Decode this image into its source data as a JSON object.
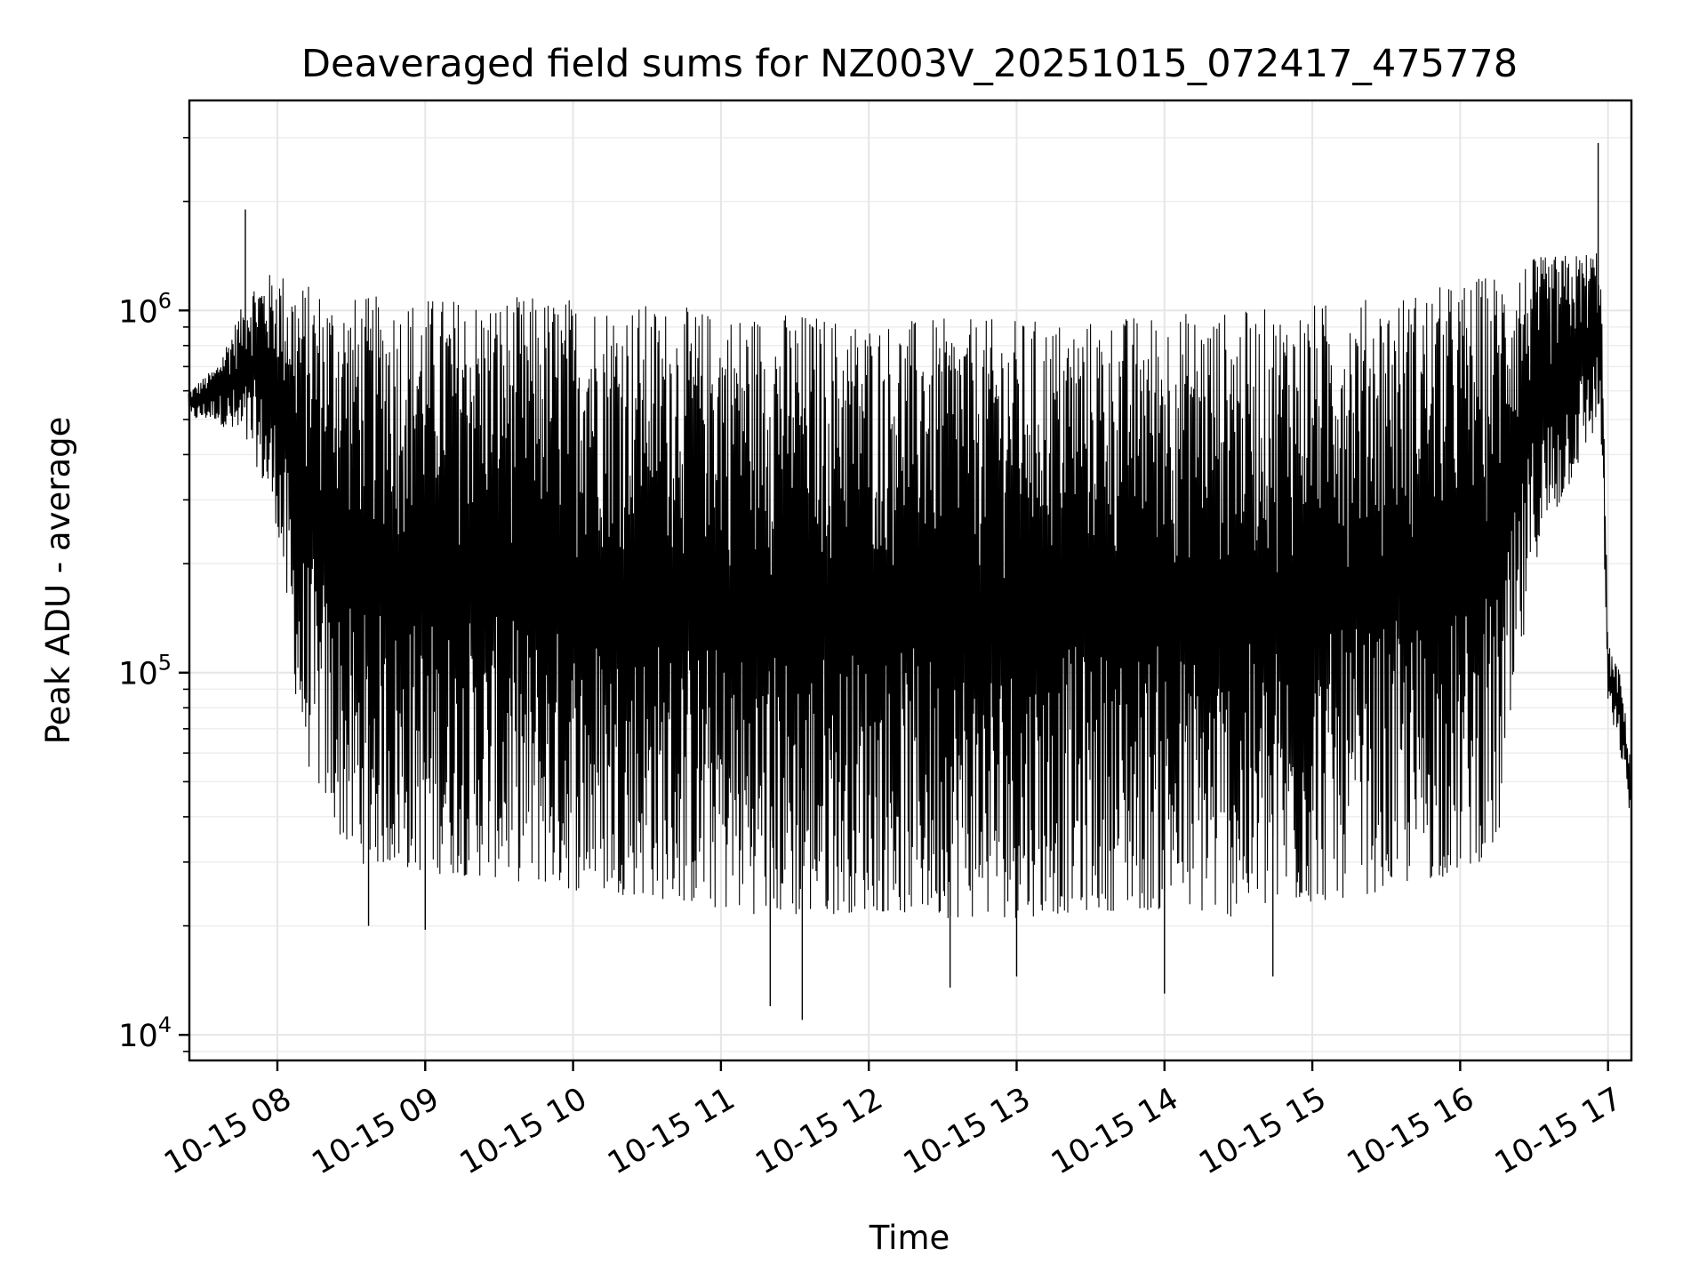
{
  "chart_data": {
    "type": "line",
    "title": "Deaveraged field sums for NZ003V_20251015_072417_475778",
    "xlabel": "Time",
    "ylabel": "Peak ADU - average",
    "yscale": "log",
    "ylim": [
      8500,
      3800000
    ],
    "xlim": [
      "2025-10-15 07:24:17",
      "2025-10-15 17:09:30"
    ],
    "grid": true,
    "legend": "none",
    "line_color": "#000000",
    "x_ticks": [
      "10-15 08",
      "10-15 09",
      "10-15 10",
      "10-15 11",
      "10-15 12",
      "10-15 13",
      "10-15 14",
      "10-15 15",
      "10-15 16",
      "10-15 17"
    ],
    "y_ticks": [
      {
        "base": "10",
        "exp": "4",
        "value": 10000
      },
      {
        "base": "10",
        "exp": "5",
        "value": 100000
      },
      {
        "base": "10",
        "exp": "6",
        "value": 1000000
      }
    ],
    "envelope": {
      "x": [
        "2025-10-15 07:24",
        "2025-10-15 07:35",
        "2025-10-15 07:50",
        "2025-10-15 08:00",
        "2025-10-15 08:10",
        "2025-10-15 08:30",
        "2025-10-15 09:00",
        "2025-10-15 09:30",
        "2025-10-15 10:00",
        "2025-10-15 10:30",
        "2025-10-15 11:00",
        "2025-10-15 11:30",
        "2025-10-15 12:00",
        "2025-10-15 12:30",
        "2025-10-15 13:00",
        "2025-10-15 13:30",
        "2025-10-15 14:00",
        "2025-10-15 14:30",
        "2025-10-15 15:00",
        "2025-10-15 15:30",
        "2025-10-15 16:00",
        "2025-10-15 16:15",
        "2025-10-15 16:30",
        "2025-10-15 16:50",
        "2025-10-15 16:57",
        "2025-10-15 17:00",
        "2025-10-15 17:05",
        "2025-10-15 17:09"
      ],
      "upper": [
        600000,
        700000,
        1200000,
        1300000,
        1200000,
        1100000,
        1100000,
        1100000,
        1100000,
        1050000,
        1000000,
        1000000,
        950000,
        950000,
        950000,
        950000,
        1000000,
        1000000,
        1050000,
        1100000,
        1200000,
        1300000,
        1400000,
        1450000,
        1500000,
        120000,
        100000,
        60000
      ],
      "lower": [
        500000,
        500000,
        400000,
        250000,
        60000,
        30000,
        28000,
        27000,
        25000,
        24000,
        22000,
        21000,
        22000,
        21000,
        21000,
        22000,
        22000,
        21000,
        23000,
        25000,
        28000,
        32000,
        200000,
        400000,
        500000,
        80000,
        60000,
        40000
      ]
    },
    "spikes_high": [
      {
        "x": "2025-10-15 07:47",
        "y": 1900000
      },
      {
        "x": "2025-10-15 16:56",
        "y": 2900000
      }
    ],
    "spikes_low": [
      {
        "x": "2025-10-15 08:37",
        "y": 20000
      },
      {
        "x": "2025-10-15 09:00",
        "y": 19500
      },
      {
        "x": "2025-10-15 11:20",
        "y": 12000
      },
      {
        "x": "2025-10-15 11:33",
        "y": 11000
      },
      {
        "x": "2025-10-15 12:33",
        "y": 13500
      },
      {
        "x": "2025-10-15 13:00",
        "y": 14500
      },
      {
        "x": "2025-10-15 14:00",
        "y": 13000
      },
      {
        "x": "2025-10-15 14:44",
        "y": 14500
      }
    ]
  }
}
